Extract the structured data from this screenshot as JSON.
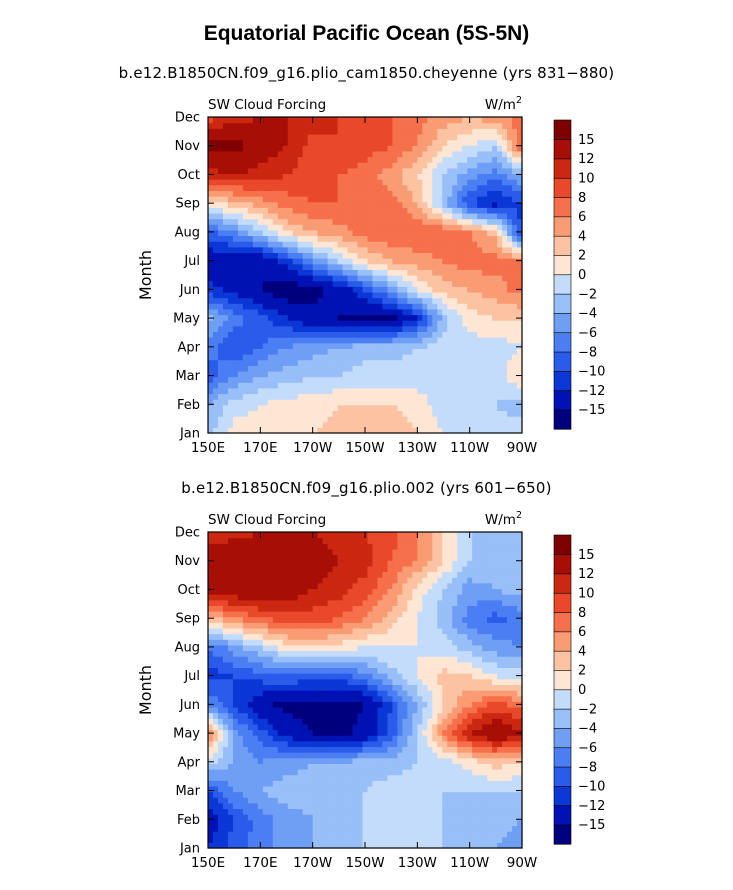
{
  "main_title": "Equatorial Pacific Ocean (5S-5N)",
  "colorbar": {
    "colors": [
      "#00007f",
      "#0012b3",
      "#0a37d6",
      "#2a5bea",
      "#4a7ef2",
      "#6f9ff5",
      "#98bff8",
      "#c4dcfb",
      "#fde6d4",
      "#fcc3a3",
      "#f99b73",
      "#f5704b",
      "#e9492a",
      "#cc2710",
      "#a70e06",
      "#7e0000"
    ],
    "labels": [
      "-15",
      "-12",
      "-10",
      "-8",
      "-6",
      "-4",
      "-2",
      "0",
      "2",
      "4",
      "6",
      "8",
      "10",
      "12",
      "15"
    ]
  },
  "chart_data": [
    {
      "type": "heatmap",
      "title": "b.e12.B1850CN.f09_g16.plio_cam1850.cheyenne (yrs 831−880)",
      "left_label": "SW Cloud Forcing",
      "units_label": "W/m",
      "units_sup": "2",
      "ylabel": "Month",
      "xlabel": "",
      "x_ticks": [
        "150E",
        "170E",
        "170W",
        "150W",
        "130W",
        "110W",
        "90W"
      ],
      "y_ticks": [
        "Jan",
        "Feb",
        "Mar",
        "Apr",
        "May",
        "Jun",
        "Jul",
        "Aug",
        "Sep",
        "Oct",
        "Nov",
        "Dec"
      ],
      "xlim": [
        "150E",
        "90W"
      ],
      "levels": [
        -15,
        -12,
        -10,
        -8,
        -6,
        -4,
        -2,
        0,
        2,
        4,
        6,
        8,
        10,
        12,
        15
      ],
      "columns": [
        "150E",
        "160E",
        "170E",
        "180",
        "170W",
        "160W",
        "150W",
        "140W",
        "130W",
        "120W",
        "110W",
        "100W",
        "90W"
      ],
      "rows": [
        "Jan",
        "Feb",
        "Mar",
        "Apr",
        "May",
        "Jun",
        "Jul",
        "Aug",
        "Sep",
        "Oct",
        "Nov",
        "Dec"
      ],
      "values": [
        [
          -3,
          1,
          1,
          2,
          2,
          3,
          4,
          4,
          2,
          0,
          -1,
          -1,
          -1
        ],
        [
          -4,
          -1,
          0,
          1,
          1,
          2,
          2,
          2,
          1,
          -1,
          -1,
          -2,
          -3
        ],
        [
          -9,
          -6,
          -4,
          -3,
          -2,
          -2,
          -1,
          -1,
          -1,
          -1,
          -1,
          -1,
          2
        ],
        [
          -7,
          -10,
          -8,
          -6,
          -5,
          -4,
          -3,
          -3,
          -2,
          -1,
          -1,
          -1,
          0
        ],
        [
          -3,
          -7,
          -9,
          -12,
          -14,
          -15,
          -16,
          -16,
          -12,
          -3,
          1,
          2,
          2
        ],
        [
          -11,
          -13,
          -15,
          -17,
          -16,
          -14,
          -10,
          -5,
          0,
          3,
          4,
          5,
          7
        ],
        [
          -14,
          -15,
          -15,
          -11,
          -6,
          -2,
          2,
          4,
          5,
          6,
          7,
          7,
          6
        ],
        [
          -9,
          -6,
          -2,
          2,
          4,
          5,
          7,
          8,
          8,
          8,
          6,
          3,
          -11
        ],
        [
          1,
          3,
          5,
          7,
          8,
          8,
          8,
          7,
          4,
          -3,
          -10,
          -13,
          -10
        ],
        [
          11,
          12,
          11,
          10,
          9,
          8,
          7,
          5,
          2,
          -2,
          -5,
          -7,
          -4
        ],
        [
          16,
          16,
          14,
          12,
          9,
          10,
          9,
          8,
          6,
          2,
          0,
          -2,
          8
        ],
        [
          9,
          11,
          12,
          12,
          11,
          10,
          9,
          8,
          7,
          5,
          4,
          5,
          7
        ]
      ]
    },
    {
      "type": "heatmap",
      "title": "b.e12.B1850CN.f09_g16.plio.002 (yrs 601−650)",
      "left_label": "SW Cloud Forcing",
      "units_label": "W/m",
      "units_sup": "2",
      "ylabel": "Month",
      "xlabel": "",
      "x_ticks": [
        "150E",
        "170E",
        "170W",
        "150W",
        "130W",
        "110W",
        "90W"
      ],
      "y_ticks": [
        "Jan",
        "Feb",
        "Mar",
        "Apr",
        "May",
        "Jun",
        "Jul",
        "Aug",
        "Sep",
        "Oct",
        "Nov",
        "Dec"
      ],
      "xlim": [
        "150E",
        "90W"
      ],
      "levels": [
        -15,
        -12,
        -10,
        -8,
        -6,
        -4,
        -2,
        0,
        2,
        4,
        6,
        8,
        10,
        12,
        15
      ],
      "columns": [
        "150E",
        "160E",
        "170E",
        "180",
        "170W",
        "160W",
        "150W",
        "140W",
        "130W",
        "120W",
        "110W",
        "100W",
        "90W"
      ],
      "rows": [
        "Jan",
        "Feb",
        "Mar",
        "Apr",
        "May",
        "Jun",
        "Jul",
        "Aug",
        "Sep",
        "Oct",
        "Nov",
        "Dec"
      ],
      "values": [
        [
          -12,
          -9,
          -7,
          -5,
          -4,
          -3,
          -2,
          -1,
          -1,
          -2,
          -3,
          -4,
          -5
        ],
        [
          -14,
          -10,
          -7,
          -5,
          -4,
          -3,
          -2,
          -1,
          -1,
          -2,
          -3,
          -3,
          -4
        ],
        [
          -10,
          -6,
          -4,
          -3,
          -3,
          -3,
          -2,
          -1,
          -1,
          -2,
          -2,
          -2,
          -2
        ],
        [
          -1,
          -4,
          -6,
          -5,
          -4,
          -4,
          -3,
          -3,
          -2,
          -1,
          1,
          3,
          2
        ],
        [
          7,
          -5,
          -9,
          -13,
          -15,
          -16,
          -14,
          -9,
          -2,
          6,
          12,
          15,
          12
        ],
        [
          -6,
          -10,
          -14,
          -16,
          -16,
          -16,
          -15,
          -10,
          -4,
          2,
          6,
          9,
          7
        ],
        [
          -11,
          -10,
          -9,
          -8,
          -9,
          -9,
          -7,
          -3,
          0,
          3,
          2,
          0,
          -1
        ],
        [
          -8,
          -5,
          -2,
          1,
          2,
          1,
          0,
          0,
          0,
          -1,
          -3,
          -5,
          -6
        ],
        [
          3,
          6,
          8,
          9,
          9,
          8,
          6,
          3,
          0,
          -3,
          -7,
          -9,
          -7
        ],
        [
          13,
          14,
          14,
          14,
          12,
          11,
          9,
          6,
          1,
          -2,
          -5,
          -4,
          -3
        ],
        [
          15,
          15,
          15,
          14,
          13,
          12,
          11,
          8,
          6,
          2,
          -2,
          -3,
          -3
        ],
        [
          10,
          11,
          12,
          12,
          12,
          11,
          10,
          9,
          6,
          2,
          -2,
          -4,
          -4
        ]
      ]
    }
  ]
}
